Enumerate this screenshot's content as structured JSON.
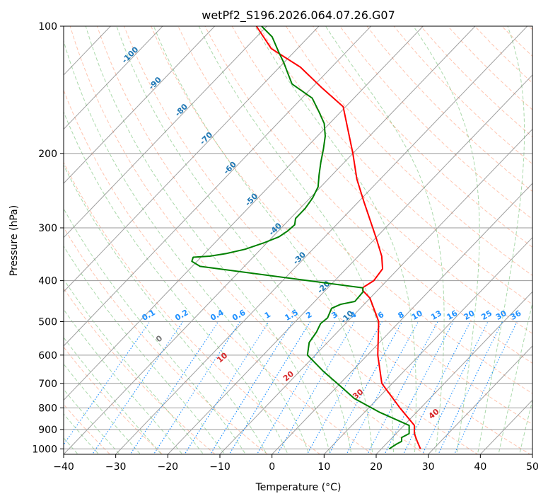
{
  "chart_data": {
    "type": "line",
    "title": "wetPf2_S196.2026.064.07.26.G07",
    "xlabel": "Temperature (°C)",
    "ylabel": "Pressure (hPa)",
    "xlim": [
      -40,
      50
    ],
    "ylim": [
      1030,
      100
    ],
    "x_ticks": [
      "−40",
      "−30",
      "−20",
      "−10",
      "0",
      "10",
      "20",
      "30",
      "40",
      "50"
    ],
    "y_ticks": [
      "100",
      "200",
      "300",
      "400",
      "500",
      "600",
      "700",
      "800",
      "900",
      "1000"
    ],
    "isotherm_labels": [
      "-100",
      "-90",
      "-80",
      "-70",
      "-60",
      "-50",
      "-40",
      "-30",
      "-20",
      "-10"
    ],
    "mixing_ratio_labels": [
      "0.1",
      "0.2",
      "0.4",
      "0.6",
      "1",
      "1.5",
      "2",
      "3",
      "4",
      "6",
      "8",
      "10",
      "13",
      "16",
      "20",
      "25",
      "30",
      "36"
    ],
    "theta_labels": [
      "0",
      "10",
      "20",
      "30",
      "40"
    ],
    "series": [
      {
        "name": "Temperature",
        "color": "#ff0000",
        "points": [
          [
            27.5,
            1000
          ],
          [
            25.5,
            960
          ],
          [
            23.5,
            920
          ],
          [
            22,
            880
          ],
          [
            16,
            800
          ],
          [
            8,
            700
          ],
          [
            2,
            600
          ],
          [
            -4,
            500
          ],
          [
            -10,
            440
          ],
          [
            -12.8,
            422
          ],
          [
            -13.3,
            415
          ],
          [
            -12.5,
            400
          ],
          [
            -13,
            375
          ],
          [
            -15.5,
            350
          ],
          [
            -19.5,
            320
          ],
          [
            -24,
            290
          ],
          [
            -29,
            260
          ],
          [
            -34.5,
            230
          ],
          [
            -40,
            200
          ],
          [
            -45.5,
            175
          ],
          [
            -50.5,
            155
          ],
          [
            -58,
            140
          ],
          [
            -66,
            125
          ],
          [
            -75,
            113
          ],
          [
            -82,
            100
          ]
        ]
      },
      {
        "name": "Dewpoint",
        "color": "#008000",
        "points": [
          [
            21.5,
            1000
          ],
          [
            22,
            975
          ],
          [
            22.5,
            960
          ],
          [
            21.8,
            940
          ],
          [
            22.5,
            920
          ],
          [
            21,
            880
          ],
          [
            13,
            820
          ],
          [
            5.5,
            760
          ],
          [
            0.5,
            710
          ],
          [
            -5.5,
            655
          ],
          [
            -11.5,
            600
          ],
          [
            -13.5,
            560
          ],
          [
            -14,
            530
          ],
          [
            -14.8,
            505
          ],
          [
            -14.5,
            490
          ],
          [
            -15.5,
            465
          ],
          [
            -14.5,
            455
          ],
          [
            -12.3,
            448
          ],
          [
            -12.5,
            425
          ],
          [
            -13.3,
            416
          ],
          [
            -48.5,
            370
          ],
          [
            -51,
            360
          ],
          [
            -51.5,
            352
          ],
          [
            -48.5,
            350
          ],
          [
            -45.8,
            345
          ],
          [
            -43,
            337
          ],
          [
            -40.5,
            325
          ],
          [
            -38.8,
            315
          ],
          [
            -38.2,
            305
          ],
          [
            -38,
            295
          ],
          [
            -39,
            285
          ],
          [
            -39,
            270
          ],
          [
            -39.5,
            255
          ],
          [
            -40.5,
            240
          ],
          [
            -42.5,
            225
          ],
          [
            -44.5,
            210
          ],
          [
            -46.5,
            195
          ],
          [
            -48.5,
            182
          ],
          [
            -51,
            170
          ],
          [
            -54,
            160
          ],
          [
            -58,
            148
          ],
          [
            -64.5,
            137
          ],
          [
            -67,
            130
          ],
          [
            -70,
            122
          ],
          [
            -73,
            115
          ],
          [
            -77,
            106
          ],
          [
            -81,
            100
          ]
        ]
      }
    ]
  }
}
